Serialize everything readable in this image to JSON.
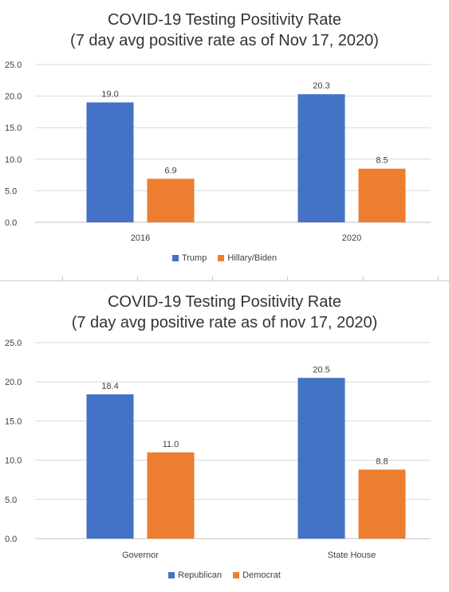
{
  "charts": [
    {
      "title_line1": "COVID-19 Testing Positivity Rate",
      "title_line2": "(7 day avg positive rate as of Nov 17, 2020)"
    },
    {
      "title_line1": "COVID-19 Testing Positivity Rate",
      "title_line2": "(7 day avg positive rate as of nov 17, 2020)"
    }
  ],
  "chart_data": [
    {
      "type": "bar",
      "title": "COVID-19 Testing Positivity Rate (7 day avg positive rate as of Nov 17, 2020)",
      "categories": [
        "2016",
        "2020"
      ],
      "series": [
        {
          "name": "Trump",
          "values": [
            19.0,
            20.3
          ],
          "color": "#4472C4"
        },
        {
          "name": "Hillary/Biden",
          "values": [
            6.9,
            8.5
          ],
          "color": "#ED7D31"
        }
      ],
      "yticks": [
        "0.0",
        "5.0",
        "10.0",
        "15.0",
        "20.0",
        "25.0"
      ],
      "ylim": [
        0,
        25
      ],
      "xlabel": "",
      "ylabel": "",
      "grid": true,
      "legend": "bottom"
    },
    {
      "type": "bar",
      "title": "COVID-19 Testing Positivity Rate (7 day avg positive rate as of nov 17, 2020)",
      "categories": [
        "Governor",
        "State House"
      ],
      "series": [
        {
          "name": "Republican",
          "values": [
            18.4,
            20.5
          ],
          "color": "#4472C4"
        },
        {
          "name": "Democrat",
          "values": [
            11.0,
            8.8
          ],
          "color": "#ED7D31"
        }
      ],
      "yticks": [
        "0.0",
        "5.0",
        "10.0",
        "15.0",
        "20.0",
        "25.0"
      ],
      "ylim": [
        0,
        25
      ],
      "xlabel": "",
      "ylabel": "",
      "grid": true,
      "legend": "bottom"
    }
  ]
}
